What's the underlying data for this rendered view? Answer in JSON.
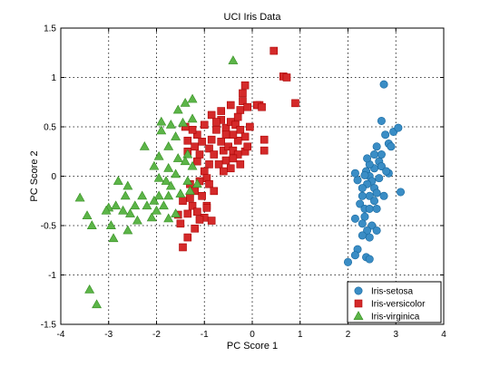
{
  "chart_data": {
    "type": "scatter",
    "title": "UCI Iris Data",
    "xlabel": "PC Score 1",
    "ylabel": "PC Score 2",
    "xlim": [
      -4,
      4
    ],
    "ylim": [
      -1.5,
      1.5
    ],
    "xticks": [
      "-4",
      "-3",
      "-2",
      "-1",
      "0",
      "1",
      "2",
      "3",
      "4"
    ],
    "yticks": [
      "1.5",
      "1",
      "0.5",
      "0",
      "-0.5",
      "-1",
      "-1.5"
    ],
    "grid": true,
    "legend_position": "bottom-right",
    "series": [
      {
        "name": "Iris-setosa",
        "marker": "circle",
        "color": "#3a8dc5",
        "points": [
          [
            2.75,
            0.93
          ],
          [
            2.7,
            0.56
          ],
          [
            2.95,
            0.45
          ],
          [
            3.05,
            0.49
          ],
          [
            2.78,
            0.42
          ],
          [
            2.6,
            0.3
          ],
          [
            2.55,
            0.22
          ],
          [
            2.65,
            0.15
          ],
          [
            2.55,
            0.08
          ],
          [
            2.45,
            0.12
          ],
          [
            2.85,
            0.33
          ],
          [
            2.9,
            0.3
          ],
          [
            2.38,
            0.05
          ],
          [
            2.45,
            0.0
          ],
          [
            2.35,
            0.01
          ],
          [
            2.65,
            -0.02
          ],
          [
            2.7,
            0.1
          ],
          [
            2.85,
            0.03
          ],
          [
            2.5,
            -0.05
          ],
          [
            2.4,
            -0.08
          ],
          [
            2.2,
            -0.04
          ],
          [
            2.15,
            0.03
          ],
          [
            2.3,
            -0.12
          ],
          [
            2.55,
            -0.12
          ],
          [
            2.6,
            -0.17
          ],
          [
            2.45,
            -0.2
          ],
          [
            2.3,
            -0.2
          ],
          [
            2.25,
            -0.28
          ],
          [
            2.55,
            -0.25
          ],
          [
            2.35,
            -0.33
          ],
          [
            2.45,
            -0.33
          ],
          [
            2.6,
            -0.33
          ],
          [
            2.35,
            -0.41
          ],
          [
            2.15,
            -0.43
          ],
          [
            2.3,
            -0.48
          ],
          [
            2.5,
            -0.5
          ],
          [
            2.4,
            -0.55
          ],
          [
            2.6,
            -0.55
          ],
          [
            2.3,
            -0.6
          ],
          [
            2.45,
            -0.62
          ],
          [
            2.2,
            -0.74
          ],
          [
            2.15,
            -0.8
          ],
          [
            2.38,
            -0.82
          ],
          [
            2.45,
            -0.84
          ],
          [
            2.0,
            -0.87
          ],
          [
            3.1,
            -0.16
          ],
          [
            2.75,
            -0.2
          ],
          [
            2.7,
            0.22
          ],
          [
            2.4,
            0.18
          ],
          [
            2.8,
            0.05
          ]
        ]
      },
      {
        "name": "Iris-versicolor",
        "marker": "square",
        "color": "#d42a2a",
        "points": [
          [
            0.45,
            1.27
          ],
          [
            0.65,
            1.01
          ],
          [
            0.72,
            1.0
          ],
          [
            0.9,
            0.74
          ],
          [
            -0.15,
            0.92
          ],
          [
            -0.2,
            0.84
          ],
          [
            -0.2,
            0.76
          ],
          [
            -0.25,
            0.67
          ],
          [
            -0.3,
            0.6
          ],
          [
            -0.45,
            0.72
          ],
          [
            -0.65,
            0.66
          ],
          [
            -0.65,
            0.57
          ],
          [
            -0.85,
            0.62
          ],
          [
            -0.75,
            0.47
          ],
          [
            -0.55,
            0.49
          ],
          [
            0.15,
            0.72
          ],
          [
            0.1,
            0.72
          ],
          [
            0.2,
            0.7
          ],
          [
            -0.1,
            0.7
          ],
          [
            -0.45,
            0.55
          ],
          [
            -0.35,
            0.52
          ],
          [
            -0.25,
            0.47
          ],
          [
            -0.05,
            0.5
          ],
          [
            -0.15,
            0.4
          ],
          [
            -0.3,
            0.36
          ],
          [
            -0.4,
            0.42
          ],
          [
            -0.55,
            0.42
          ],
          [
            -0.65,
            0.35
          ],
          [
            -0.85,
            0.37
          ],
          [
            -1.0,
            0.52
          ],
          [
            -1.15,
            0.42
          ],
          [
            -1.25,
            0.47
          ],
          [
            -1.4,
            0.5
          ],
          [
            -1.35,
            0.36
          ],
          [
            -1.35,
            0.25
          ],
          [
            -1.2,
            0.3
          ],
          [
            -1.05,
            0.35
          ],
          [
            -0.9,
            0.28
          ],
          [
            -0.8,
            0.22
          ],
          [
            -0.6,
            0.26
          ],
          [
            -0.5,
            0.3
          ],
          [
            -0.4,
            0.26
          ],
          [
            -0.3,
            0.22
          ],
          [
            -0.15,
            0.25
          ],
          [
            -0.1,
            0.3
          ],
          [
            0.25,
            0.37
          ],
          [
            0.25,
            0.26
          ],
          [
            -0.25,
            0.12
          ],
          [
            -0.45,
            0.08
          ],
          [
            -0.55,
            0.16
          ],
          [
            -0.7,
            0.12
          ],
          [
            -0.9,
            0.12
          ],
          [
            -1.15,
            0.15
          ],
          [
            -1.0,
            0.05
          ],
          [
            -0.95,
            -0.02
          ],
          [
            -1.1,
            -0.05
          ],
          [
            -1.3,
            -0.08
          ],
          [
            -0.9,
            -0.08
          ],
          [
            -1.2,
            -0.15
          ],
          [
            -1.05,
            -0.2
          ],
          [
            -1.3,
            -0.22
          ],
          [
            -1.45,
            -0.25
          ],
          [
            -1.25,
            -0.3
          ],
          [
            -0.95,
            -0.3
          ],
          [
            -1.15,
            -0.36
          ],
          [
            -1.35,
            -0.38
          ],
          [
            -1.55,
            -0.39
          ],
          [
            -1.0,
            -0.42
          ],
          [
            -1.1,
            -0.44
          ],
          [
            -1.5,
            -0.48
          ],
          [
            -1.35,
            -0.62
          ],
          [
            -0.85,
            -0.45
          ],
          [
            -0.95,
            -0.32
          ],
          [
            -1.2,
            -0.53
          ],
          [
            -1.45,
            -0.72
          ],
          [
            -0.4,
            0.18
          ],
          [
            -0.6,
            0.05
          ],
          [
            -0.8,
            -0.15
          ],
          [
            -1.1,
            0.22
          ],
          [
            -0.75,
            0.55
          ]
        ]
      },
      {
        "name": "Iris-virginica",
        "marker": "triangle",
        "color": "#5cb548",
        "points": [
          [
            -0.4,
            1.17
          ],
          [
            -1.25,
            0.78
          ],
          [
            -1.25,
            0.58
          ],
          [
            -1.45,
            0.54
          ],
          [
            -1.55,
            0.67
          ],
          [
            -1.4,
            0.74
          ],
          [
            -1.9,
            0.55
          ],
          [
            -2.25,
            0.3
          ],
          [
            -1.9,
            0.46
          ],
          [
            -1.7,
            0.52
          ],
          [
            -1.6,
            0.4
          ],
          [
            -1.75,
            0.3
          ],
          [
            -1.55,
            0.18
          ],
          [
            -1.35,
            0.22
          ],
          [
            -1.25,
            0.1
          ],
          [
            -1.4,
            0.15
          ],
          [
            -1.95,
            0.2
          ],
          [
            -2.05,
            0.1
          ],
          [
            -1.75,
            0.08
          ],
          [
            -1.6,
            0.02
          ],
          [
            -1.8,
            -0.05
          ],
          [
            -1.95,
            -0.02
          ],
          [
            -1.35,
            -0.05
          ],
          [
            -1.15,
            -0.08
          ],
          [
            -1.3,
            -0.15
          ],
          [
            -1.5,
            -0.18
          ],
          [
            -1.75,
            -0.2
          ],
          [
            -1.95,
            -0.2
          ],
          [
            -2.05,
            -0.25
          ],
          [
            -2.3,
            -0.2
          ],
          [
            -2.6,
            -0.1
          ],
          [
            -2.8,
            -0.05
          ],
          [
            -2.65,
            -0.2
          ],
          [
            -2.45,
            -0.3
          ],
          [
            -2.55,
            -0.38
          ],
          [
            -2.2,
            -0.3
          ],
          [
            -2.0,
            -0.35
          ],
          [
            -1.85,
            -0.3
          ],
          [
            -1.6,
            -0.38
          ],
          [
            -1.75,
            -0.43
          ],
          [
            -2.1,
            -0.42
          ],
          [
            -2.4,
            -0.45
          ],
          [
            -2.7,
            -0.35
          ],
          [
            -2.85,
            -0.3
          ],
          [
            -3.0,
            -0.32
          ],
          [
            -2.95,
            -0.5
          ],
          [
            -3.05,
            -0.35
          ],
          [
            -3.6,
            -0.22
          ],
          [
            -3.45,
            -0.4
          ],
          [
            -3.35,
            -0.5
          ],
          [
            -2.6,
            -0.55
          ],
          [
            -2.9,
            -0.63
          ],
          [
            -3.4,
            -1.15
          ],
          [
            -3.25,
            -1.3
          ],
          [
            -1.7,
            -0.1
          ]
        ]
      }
    ]
  }
}
